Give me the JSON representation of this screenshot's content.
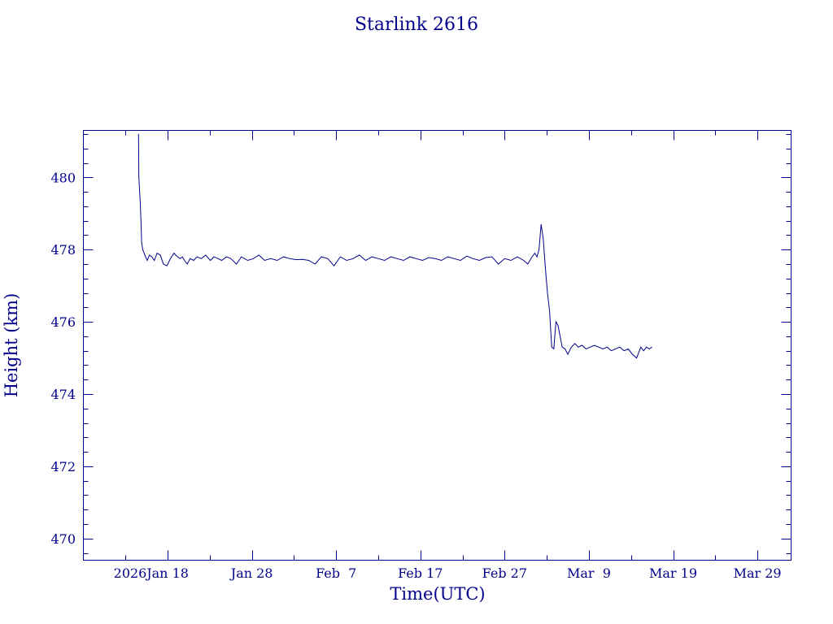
{
  "colors": {
    "ink": "#00008b",
    "background": "#ffffff"
  },
  "chart_data": {
    "type": "line",
    "title": "Starlink 2616",
    "xlabel": "Time(UTC)",
    "ylabel": "Height (km)",
    "x_range": [
      "2026-01-08",
      "2026-04-02"
    ],
    "ylim": [
      469.4,
      481.3
    ],
    "y_ticks": [
      470,
      472,
      474,
      476,
      478,
      480
    ],
    "y_minor_step": 0.4,
    "x_major_ticks": [
      {
        "date": "2026-01-18",
        "label": "Jan 18"
      },
      {
        "date": "2026-01-28",
        "label": "Jan 28"
      },
      {
        "date": "2026-02-07",
        "label": "Feb  7"
      },
      {
        "date": "2026-02-17",
        "label": "Feb 17"
      },
      {
        "date": "2026-02-27",
        "label": "Feb 27"
      },
      {
        "date": "2026-03-09",
        "label": "Mar  9"
      },
      {
        "date": "2026-03-19",
        "label": "Mar 19"
      },
      {
        "date": "2026-03-29",
        "label": "Mar 29"
      }
    ],
    "x_minor_ticks": [
      "2026-01-13",
      "2026-01-23",
      "2026-02-02",
      "2026-02-12",
      "2026-02-22",
      "2026-03-04",
      "2026-03-14",
      "2026-03-24"
    ],
    "year_label": "2026",
    "grid": false,
    "series": [
      {
        "x": [
          "2026-01-14T13:00",
          "2026-01-14T14:00",
          "2026-01-14T18:00",
          "2026-01-14T20:00",
          "2026-01-14T22:00",
          "2026-01-15T01:00",
          "2026-01-15T05:00",
          "2026-01-15T09:00",
          "2026-01-15T14:00",
          "2026-01-15T20:00",
          "2026-01-16T03:00",
          "2026-01-16T10:00",
          "2026-01-16T18:00",
          "2026-01-17T03:00",
          "2026-01-17T12:00",
          "2026-01-17T22:00",
          "2026-01-18T08:00",
          "2026-01-18T18:00",
          "2026-01-19T04:00",
          "2026-01-19T12:00",
          "2026-01-19T18:00",
          "2026-01-20T00:00",
          "2026-01-20T08:00",
          "2026-01-20T16:00",
          "2026-01-21T02:00",
          "2026-01-21T12:00",
          "2026-01-22T00:00",
          "2026-01-22T12:00",
          "2026-01-23T02:00",
          "2026-01-23T12:00",
          "2026-01-24T00:00",
          "2026-01-24T10:00",
          "2026-01-25T00:00",
          "2026-01-25T12:00",
          "2026-01-26T04:00",
          "2026-01-26T18:00",
          "2026-01-27T12:00",
          "2026-01-28T04:00",
          "2026-01-28T20:00",
          "2026-01-29T12:00",
          "2026-01-30T06:00",
          "2026-01-31T00:00",
          "2026-01-31T18:00",
          "2026-02-01T12:00",
          "2026-02-02T06:00",
          "2026-02-03T00:00",
          "2026-02-03T18:00",
          "2026-02-04T12:00",
          "2026-02-05T06:00",
          "2026-02-06T00:00",
          "2026-02-06T18:00",
          "2026-02-07T12:00",
          "2026-02-08T06:00",
          "2026-02-09T00:00",
          "2026-02-09T18:00",
          "2026-02-10T12:00",
          "2026-02-11T06:00",
          "2026-02-12T00:00",
          "2026-02-12T18:00",
          "2026-02-13T12:00",
          "2026-02-14T06:00",
          "2026-02-15T00:00",
          "2026-02-15T18:00",
          "2026-02-16T12:00",
          "2026-02-17T06:00",
          "2026-02-18T00:00",
          "2026-02-18T18:00",
          "2026-02-19T12:00",
          "2026-02-20T06:00",
          "2026-02-21T00:00",
          "2026-02-21T18:00",
          "2026-02-22T12:00",
          "2026-02-23T06:00",
          "2026-02-24T00:00",
          "2026-02-24T18:00",
          "2026-02-25T12:00",
          "2026-02-26T06:00",
          "2026-02-27T00:00",
          "2026-02-27T18:00",
          "2026-02-28T12:00",
          "2026-03-01T06:00",
          "2026-03-01T18:00",
          "2026-03-02T06:00",
          "2026-03-02T14:00",
          "2026-03-02T20:00",
          "2026-03-03T02:00",
          "2026-03-03T08:00",
          "2026-03-03T14:00",
          "2026-03-03T20:00",
          "2026-03-04T02:00",
          "2026-03-04T08:00",
          "2026-03-04T14:00",
          "2026-03-04T20:00",
          "2026-03-05T02:00",
          "2026-03-05T08:00",
          "2026-03-05T14:00",
          "2026-03-05T20:00",
          "2026-03-06T04:00",
          "2026-03-06T12:00",
          "2026-03-06T22:00",
          "2026-03-07T08:00",
          "2026-03-07T18:00",
          "2026-03-08T04:00",
          "2026-03-08T16:00",
          "2026-03-09T04:00",
          "2026-03-09T16:00",
          "2026-03-10T04:00",
          "2026-03-10T16:00",
          "2026-03-11T04:00",
          "2026-03-11T16:00",
          "2026-03-12T04:00",
          "2026-03-12T16:00",
          "2026-03-13T04:00",
          "2026-03-13T16:00",
          "2026-03-14T04:00",
          "2026-03-14T16:00",
          "2026-03-15T04:00",
          "2026-03-15T12:00",
          "2026-03-15T20:00",
          "2026-03-16T04:00",
          "2026-03-16T12:00"
        ],
        "y": [
          481.2,
          480.0,
          479.3,
          478.8,
          478.2,
          478.0,
          477.9,
          477.8,
          477.7,
          477.85,
          477.8,
          477.7,
          477.9,
          477.85,
          477.6,
          477.55,
          477.75,
          477.9,
          477.8,
          477.75,
          477.8,
          477.7,
          477.6,
          477.75,
          477.7,
          477.8,
          477.75,
          477.85,
          477.7,
          477.8,
          477.75,
          477.7,
          477.8,
          477.75,
          477.6,
          477.8,
          477.7,
          477.75,
          477.85,
          477.7,
          477.75,
          477.7,
          477.8,
          477.75,
          477.72,
          477.73,
          477.7,
          477.6,
          477.8,
          477.75,
          477.55,
          477.8,
          477.7,
          477.75,
          477.85,
          477.7,
          477.8,
          477.75,
          477.7,
          477.8,
          477.75,
          477.7,
          477.8,
          477.75,
          477.7,
          477.78,
          477.75,
          477.7,
          477.8,
          477.75,
          477.7,
          477.82,
          477.75,
          477.7,
          477.78,
          477.8,
          477.6,
          477.75,
          477.7,
          477.8,
          477.7,
          477.6,
          477.8,
          477.9,
          477.8,
          478.0,
          478.7,
          478.3,
          477.5,
          476.8,
          476.3,
          475.3,
          475.25,
          476.0,
          475.9,
          475.6,
          475.3,
          475.25,
          475.1,
          475.3,
          475.4,
          475.3,
          475.35,
          475.25,
          475.3,
          475.35,
          475.3,
          475.25,
          475.3,
          475.2,
          475.25,
          475.3,
          475.2,
          475.25,
          475.1,
          475.0,
          475.3,
          475.2,
          475.3,
          475.25,
          475.3
        ]
      }
    ]
  }
}
